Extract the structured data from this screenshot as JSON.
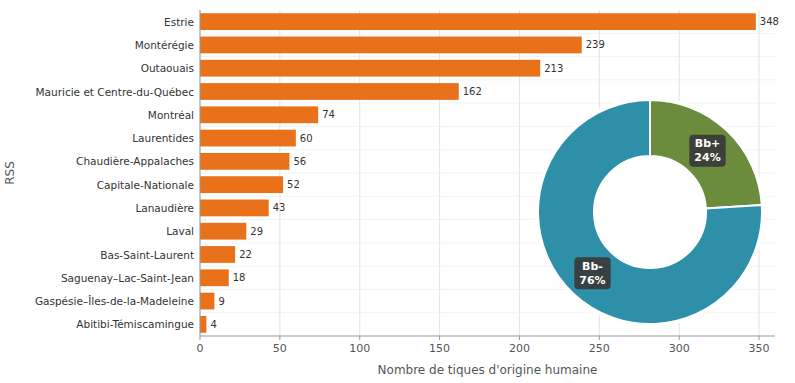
{
  "chart_data": [
    {
      "type": "bar",
      "orientation": "horizontal",
      "categories": [
        "Estrie",
        "Montérégie",
        "Outaouais",
        "Mauricie et Centre-du-Québec",
        "Montréal",
        "Laurentides",
        "Chaudière-Appalaches",
        "Capitale-Nationale",
        "Lanaudière",
        "Laval",
        "Bas-Saint-Laurent",
        "Saguenay–Lac-Saint-Jean",
        "Gaspésie–Îles-de-la-Madeleine",
        "Abitibi-Témiscamingue"
      ],
      "values": [
        348,
        239,
        213,
        162,
        74,
        60,
        56,
        52,
        43,
        29,
        22,
        18,
        9,
        4
      ],
      "color": "#E8711A",
      "xlabel": "Nombre de tiques d'origine humaine",
      "ylabel": "RSS",
      "xlim": [
        0,
        360
      ],
      "xticks": [
        0,
        50,
        100,
        150,
        200,
        250,
        300,
        350
      ],
      "grid": true,
      "data_labels": true
    },
    {
      "type": "pie",
      "categories": [
        "Bb+",
        "Bb-"
      ],
      "values": [
        24,
        76
      ],
      "value_labels": [
        "24%",
        "76%"
      ],
      "colors": [
        "#6A8C3C",
        "#2E8FA8"
      ]
    }
  ]
}
